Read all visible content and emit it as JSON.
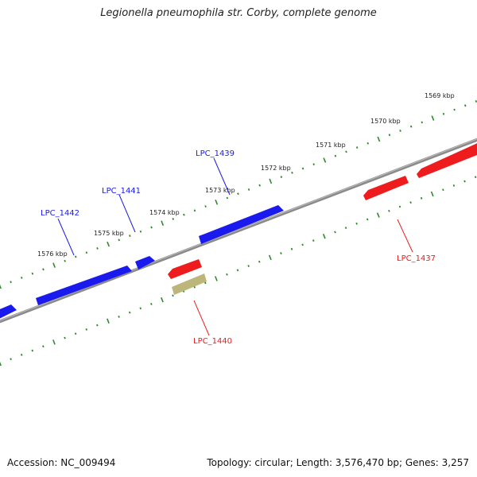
{
  "title": "Legionella pneumophila str. Corby, complete genome",
  "footer": {
    "accession": "Accession: NC_009494",
    "summary": "Topology: circular; Length: 3,576,470 bp; Genes: 3,257"
  },
  "colors": {
    "forward_gene": "#1a1aee",
    "reverse_gene": "#ee1c1c",
    "other_feature": "#bdb67a",
    "backbone": "#8a8a8a",
    "tick": "#2e8b2e"
  },
  "ruler_labels": [
    "1569 kbp",
    "1570 kbp",
    "1571 kbp",
    "1572 kbp",
    "1573 kbp",
    "1574 kbp",
    "1575 kbp",
    "1576 kbp"
  ],
  "genes": [
    {
      "label": "LPC_1437",
      "strand": "reverse"
    },
    {
      "label": "LPC_1439",
      "strand": "forward"
    },
    {
      "label": "LPC_1440",
      "strand": "reverse"
    },
    {
      "label": "LPC_1441",
      "strand": "forward"
    },
    {
      "label": "LPC_1442",
      "strand": "forward"
    }
  ]
}
